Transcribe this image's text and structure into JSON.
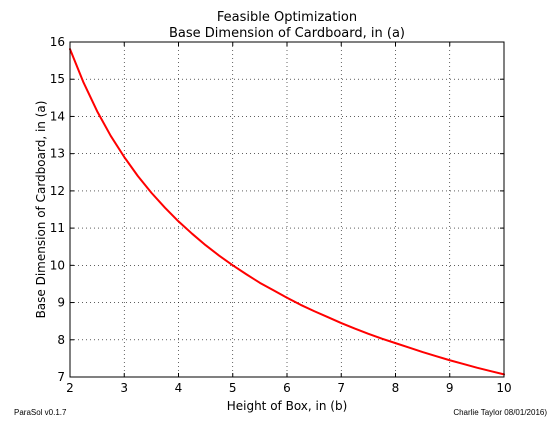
{
  "chart_data": {
    "type": "line",
    "title": "Feasible Optimization",
    "subtitle": "Base Dimension of Cardboard, in (a)",
    "xlabel": "Height of Box, in (b)",
    "ylabel": "Base Dimension of Cardboard, in (a)",
    "xlim": [
      2,
      10
    ],
    "ylim": [
      7,
      16
    ],
    "x_ticks": [
      "2",
      "3",
      "4",
      "5",
      "6",
      "7",
      "8",
      "9",
      "10"
    ],
    "y_ticks": [
      "7",
      "8",
      "9",
      "10",
      "11",
      "12",
      "13",
      "14",
      "15",
      "16"
    ],
    "grid": true,
    "series": [
      {
        "color": "#ff0000",
        "x": [
          2.0,
          2.25,
          2.5,
          2.75,
          3.0,
          3.25,
          3.5,
          3.75,
          4.0,
          4.25,
          4.5,
          4.75,
          5.0,
          5.25,
          5.5,
          5.75,
          6.0,
          6.25,
          6.5,
          6.75,
          7.0,
          7.25,
          7.5,
          7.75,
          8.0,
          8.25,
          8.5,
          8.75,
          9.0,
          9.25,
          9.5,
          9.75,
          10.0
        ],
        "y": [
          15.81,
          14.91,
          14.14,
          13.48,
          12.91,
          12.4,
          11.95,
          11.55,
          11.18,
          10.85,
          10.54,
          10.26,
          10.0,
          9.76,
          9.53,
          9.33,
          9.13,
          8.94,
          8.77,
          8.61,
          8.45,
          8.3,
          8.16,
          8.03,
          7.91,
          7.79,
          7.67,
          7.56,
          7.45,
          7.35,
          7.25,
          7.16,
          7.07
        ]
      }
    ]
  },
  "footer": {
    "left": "ParaSol v0.1.7",
    "right": "Charlie Taylor 08/01/2016)"
  }
}
